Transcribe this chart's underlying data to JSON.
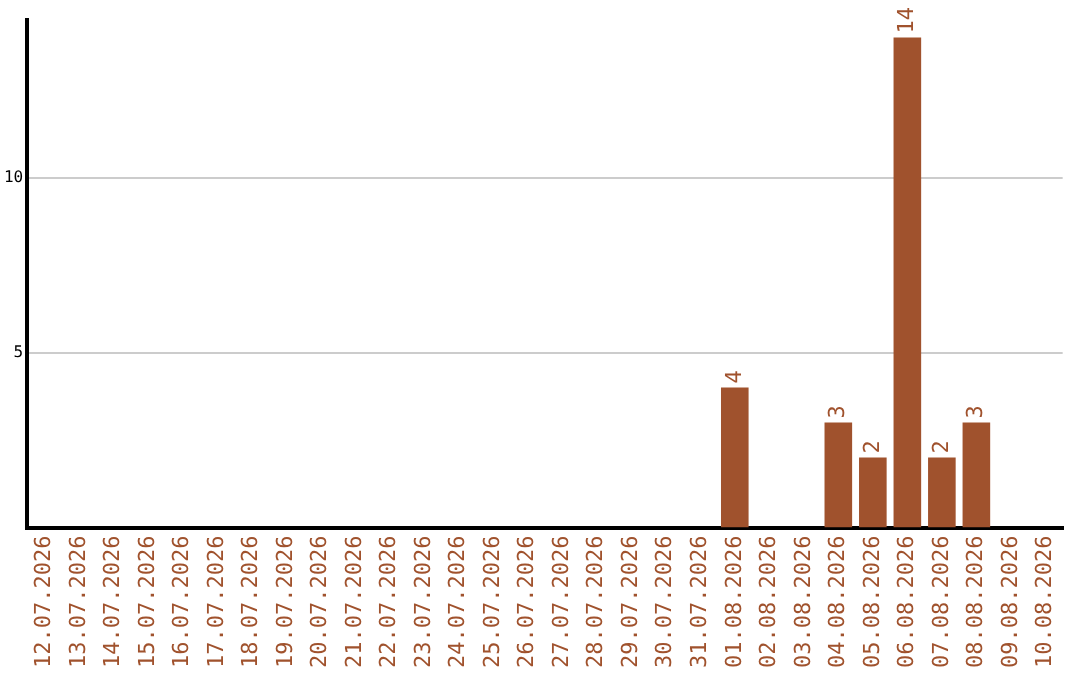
{
  "chart_data": {
    "type": "bar",
    "categories": [
      "12.07.2026",
      "13.07.2026",
      "14.07.2026",
      "15.07.2026",
      "16.07.2026",
      "17.07.2026",
      "18.07.2026",
      "19.07.2026",
      "20.07.2026",
      "21.07.2026",
      "22.07.2026",
      "23.07.2026",
      "24.07.2026",
      "25.07.2026",
      "26.07.2026",
      "27.07.2026",
      "28.07.2026",
      "29.07.2026",
      "30.07.2026",
      "31.07.2026",
      "01.08.2026",
      "02.08.2026",
      "03.08.2026",
      "04.08.2026",
      "05.08.2026",
      "06.08.2026",
      "07.08.2026",
      "08.08.2026",
      "09.08.2026",
      "10.08.2026"
    ],
    "values": [
      null,
      null,
      null,
      null,
      null,
      null,
      null,
      null,
      null,
      null,
      null,
      null,
      null,
      null,
      null,
      null,
      null,
      null,
      null,
      null,
      4,
      null,
      null,
      3,
      2,
      14,
      2,
      3,
      null,
      null
    ],
    "color": "#a0522d",
    "ylim": [
      0,
      14.5
    ],
    "yticks": [
      5,
      10
    ],
    "grid": "y",
    "data_labels": true
  }
}
